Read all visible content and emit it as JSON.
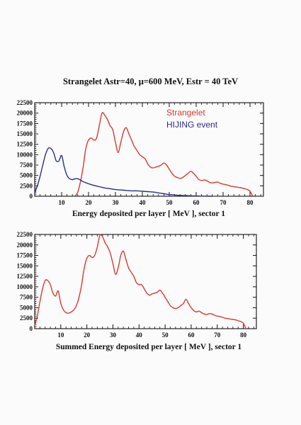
{
  "colors": {
    "strangelet": "#d93a2e",
    "hijing": "#2b2f86",
    "sum": "#d93a2e",
    "frame": "#111111"
  },
  "chart_data": [
    {
      "type": "line",
      "title": "Strangelet Astr=40, μ=600 MeV, Estr = 40 TeV",
      "xlabel": "Energy deposited per layer [ MeV ], sector 1",
      "ylabel": "",
      "xlim": [
        0,
        85
      ],
      "ylim": [
        0,
        22500
      ],
      "xticks": [
        10,
        20,
        30,
        40,
        50,
        60,
        70,
        80
      ],
      "yticks": [
        0,
        2500,
        5000,
        7500,
        10000,
        12500,
        15000,
        17500,
        20000,
        22500
      ],
      "legend_position": "top-right",
      "series": [
        {
          "name": "Strangelet",
          "color": "#d93a2e",
          "x": [
            15,
            16,
            17,
            18,
            19,
            20,
            21,
            22,
            23,
            24,
            25,
            26,
            27,
            28,
            29,
            30,
            31,
            32,
            33,
            34,
            35,
            36,
            37,
            38,
            39,
            40,
            41,
            42,
            43,
            44,
            45,
            46,
            47,
            48,
            49,
            50,
            51,
            52,
            53,
            54,
            55,
            56,
            57,
            58,
            59,
            60,
            61,
            62,
            63,
            64,
            65,
            66,
            67,
            68,
            69,
            70,
            71,
            72,
            73,
            74,
            75,
            76,
            77,
            78,
            79,
            80,
            81
          ],
          "values": [
            0,
            1000,
            3500,
            7000,
            11500,
            13500,
            14000,
            13500,
            14000,
            17000,
            20000,
            19500,
            18500,
            17000,
            16000,
            13000,
            10500,
            13000,
            15500,
            16500,
            15000,
            13500,
            12000,
            11000,
            10000,
            9500,
            9000,
            7800,
            7000,
            6800,
            7000,
            7200,
            7500,
            8000,
            7500,
            6500,
            5500,
            4800,
            4500,
            4300,
            4500,
            5000,
            5500,
            6000,
            5500,
            4800,
            4000,
            3800,
            3900,
            3700,
            3300,
            3200,
            3300,
            3400,
            3100,
            2900,
            2800,
            2600,
            2400,
            2300,
            2200,
            2100,
            2000,
            1800,
            1600,
            1200,
            0
          ]
        },
        {
          "name": "HIJING event",
          "color": "#2b2f86",
          "x": [
            0,
            1,
            2,
            3,
            4,
            5,
            6,
            7,
            8,
            9,
            10,
            11,
            12,
            13,
            14,
            15,
            16,
            17,
            18,
            20,
            22,
            24,
            26,
            28,
            30,
            32,
            34,
            36,
            38,
            40,
            42,
            44,
            46,
            48,
            50,
            52,
            54,
            56,
            58,
            60,
            62,
            64,
            66
          ],
          "values": [
            800,
            2500,
            4800,
            7500,
            10000,
            11500,
            11500,
            10500,
            8500,
            8500,
            9800,
            7000,
            5000,
            4200,
            4000,
            4200,
            4200,
            3900,
            3500,
            3000,
            2600,
            2300,
            2000,
            1800,
            1600,
            1500,
            1400,
            1300,
            1300,
            1200,
            1100,
            1000,
            800,
            600,
            400,
            300,
            200,
            150,
            100,
            60,
            30,
            10,
            0
          ]
        }
      ]
    },
    {
      "type": "line",
      "title": "",
      "xlabel": "Summed Energy deposited per layer [ MeV ], sector 1",
      "ylabel": "",
      "xlim": [
        0,
        85
      ],
      "ylim": [
        0,
        22500
      ],
      "xticks": [
        10,
        20,
        30,
        40,
        50,
        60,
        70,
        80
      ],
      "yticks": [
        0,
        2500,
        5000,
        7500,
        10000,
        12500,
        15000,
        17500,
        20000,
        22500
      ],
      "series": [
        {
          "color": "#d93a2e",
          "x": [
            0,
            1,
            2,
            3,
            4,
            5,
            6,
            7,
            8,
            9,
            10,
            11,
            12,
            13,
            14,
            15,
            16,
            17,
            18,
            19,
            20,
            21,
            22,
            23,
            24,
            25,
            26,
            27,
            28,
            29,
            30,
            31,
            32,
            33,
            34,
            35,
            36,
            37,
            38,
            39,
            40,
            41,
            42,
            43,
            44,
            45,
            46,
            47,
            48,
            49,
            50,
            51,
            52,
            53,
            54,
            55,
            56,
            57,
            58,
            59,
            60,
            61,
            62,
            63,
            64,
            65,
            66,
            67,
            68,
            69,
            70,
            71,
            72,
            73,
            74,
            75,
            76,
            77,
            78,
            79,
            80,
            81
          ],
          "values": [
            800,
            3000,
            6500,
            9500,
            11500,
            11500,
            10500,
            8500,
            7800,
            9000,
            6000,
            4500,
            3800,
            3700,
            4000,
            4500,
            5500,
            7500,
            10500,
            14500,
            16800,
            17500,
            17000,
            17500,
            19500,
            22300,
            22000,
            20500,
            19500,
            18000,
            15500,
            13000,
            14500,
            17500,
            18500,
            16500,
            14500,
            13500,
            12500,
            11000,
            10500,
            10500,
            9500,
            8500,
            8000,
            8300,
            8500,
            8700,
            9200,
            8500,
            7500,
            6500,
            5500,
            5000,
            4800,
            5000,
            5500,
            6000,
            7000,
            6000,
            5000,
            4300,
            4000,
            4200,
            3800,
            3500,
            3400,
            3600,
            3500,
            3200,
            3000,
            2900,
            2700,
            2500,
            2400,
            2300,
            2200,
            2100,
            1900,
            1700,
            1300,
            0
          ]
        }
      ]
    }
  ]
}
